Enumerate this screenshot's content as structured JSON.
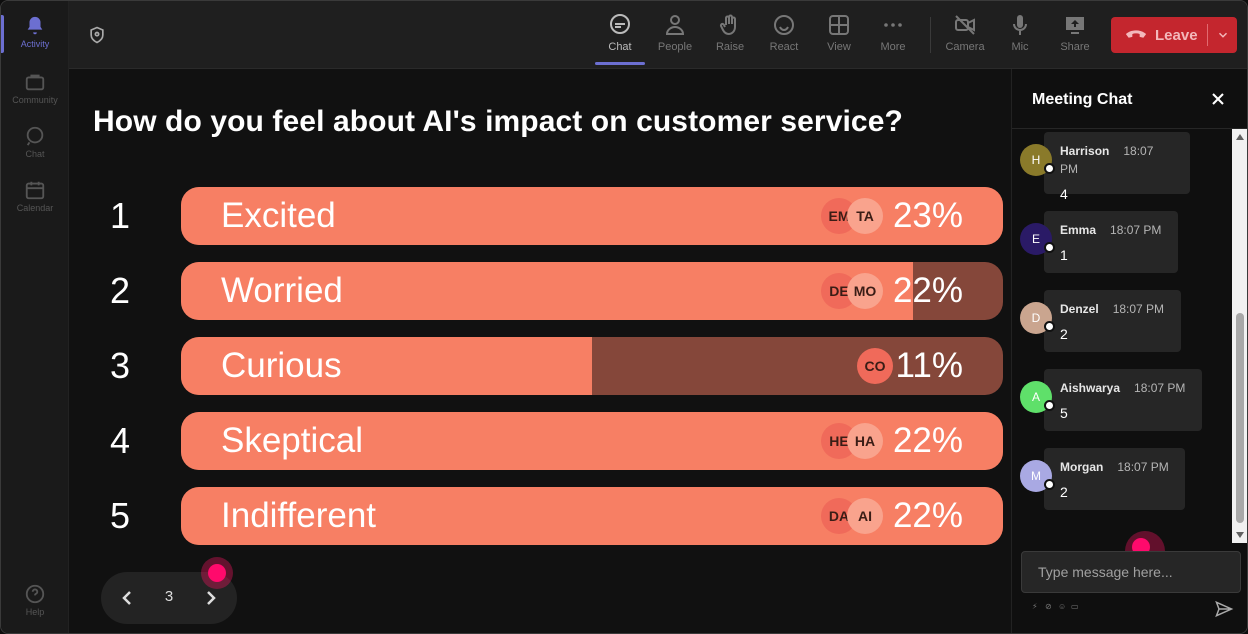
{
  "rail": {
    "items": [
      {
        "label": "Activity",
        "icon": "bell-icon"
      },
      {
        "label": "Community",
        "icon": "community-icon"
      },
      {
        "label": "Chat",
        "icon": "chat-icon"
      },
      {
        "label": "Calendar",
        "icon": "calendar-icon"
      }
    ],
    "help_label": "Help"
  },
  "toolbar": {
    "chat": "Chat",
    "people": "People",
    "raise": "Raise",
    "react": "React",
    "view": "View",
    "more": "More",
    "camera": "Camera",
    "mic": "Mic",
    "share": "Share",
    "leave": "Leave"
  },
  "poll": {
    "question": "How do you feel about AI's impact on customer service?",
    "options": [
      {
        "num": "1",
        "label": "Excited",
        "pct": "23%",
        "fill": 1.0,
        "avatars": [
          "EM",
          "TA"
        ]
      },
      {
        "num": "2",
        "label": "Worried",
        "pct": "22%",
        "fill": 0.89,
        "avatars": [
          "DE",
          "MO"
        ]
      },
      {
        "num": "3",
        "label": "Curious",
        "pct": "11%",
        "fill": 0.5,
        "avatars": [
          "CO"
        ]
      },
      {
        "num": "4",
        "label": "Skeptical",
        "pct": "22%",
        "fill": 1.0,
        "avatars": [
          "HE",
          "HA"
        ]
      },
      {
        "num": "5",
        "label": "Indifferent",
        "pct": "22%",
        "fill": 1.0,
        "avatars": [
          "DA",
          "AI"
        ]
      }
    ],
    "page": "3"
  },
  "chat": {
    "title": "Meeting Chat",
    "messages": [
      {
        "initial": "H",
        "name": "Harrison",
        "time": "18:07 PM",
        "body": "4",
        "color": "#8a7a2a"
      },
      {
        "initial": "E",
        "name": "Emma",
        "time": "18:07 PM",
        "body": "1",
        "color": "#2a1a66"
      },
      {
        "initial": "D",
        "name": "Denzel",
        "time": "18:07 PM",
        "body": "2",
        "color": "#caa58f"
      },
      {
        "initial": "A",
        "name": "Aishwarya",
        "time": "18:07 PM",
        "body": "5",
        "color": "#5fe06a"
      },
      {
        "initial": "M",
        "name": "Morgan",
        "time": "18:07 PM",
        "body": "2",
        "color": "#a9a9e3"
      }
    ],
    "input_placeholder": "Type message here..."
  },
  "colors": {
    "bar_fill": "#f77f64",
    "bar_track": "#85473a",
    "accent": "#6c6fd1",
    "leave": "#c4262e"
  }
}
